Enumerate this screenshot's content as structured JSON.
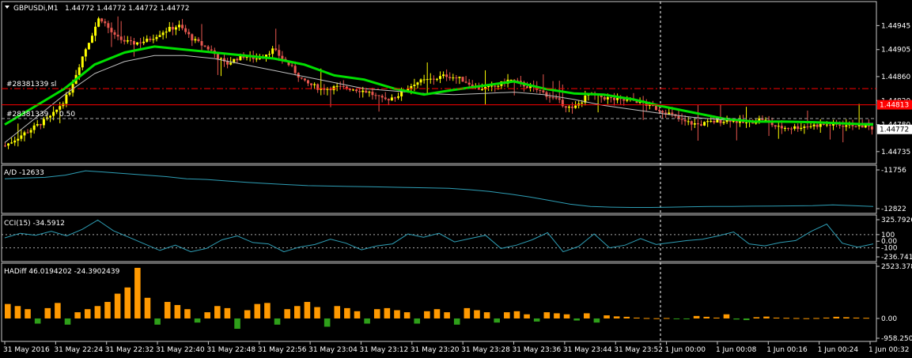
{
  "header": {
    "symbol": "GBPUSDi,M1",
    "ohlc": "1.44772 1.44772 1.44772 1.44772"
  },
  "colors": {
    "bull": "#FFFF00",
    "bear": "#E8574F",
    "ma_fast": "#00E000",
    "ma_slow": "#C0C0C0",
    "indicator_line": "#2E9EB5",
    "hist_up": "#FF9900",
    "hist_down": "#2E9F1A",
    "sl_line": "#FF0000",
    "bid_label": "#FF0000"
  },
  "chart_data": [
    {
      "type": "candlestick",
      "panel": "price",
      "ylim": [
        1.44715,
        1.44985
      ],
      "y_ticks": [
        "1.44945",
        "1.44905",
        "1.44860",
        "1.44820",
        "1.44780",
        "1.44735"
      ],
      "current_price": "1.44772",
      "sl_price": "1.44813",
      "order_lines": [
        {
          "label": "#28381339 sl",
          "price": 1.4484
        },
        {
          "label": "#28381339 ",
          "price": 1.4479
        },
        {
          "label": "0.50",
          "price": 1.4479
        }
      ],
      "x_ticks": [
        "31 May 2016",
        "31 May 22:24",
        "31 May 22:32",
        "31 May 22:40",
        "31 May 22:48",
        "31 May 22:56",
        "31 May 23:04",
        "31 May 23:12",
        "31 May 23:20",
        "31 May 23:28",
        "31 May 23:36",
        "31 May 23:44",
        "31 May 23:52",
        "1 Jun 00:00",
        "1 Jun 00:08",
        "1 Jun 00:16",
        "1 Jun 00:24",
        "1 Jun 00:32"
      ],
      "path": [
        1.44745,
        1.44762,
        1.44778,
        1.44795,
        1.4483,
        1.449,
        1.4496,
        1.44925,
        1.44915,
        1.4492,
        1.44935,
        1.44945,
        1.4492,
        1.44905,
        1.4488,
        1.44895,
        1.4489,
        1.44905,
        1.4488,
        1.4485,
        1.4484,
        1.44842,
        1.4484,
        1.44835,
        1.4482,
        1.4483,
        1.4485,
        1.44855,
        1.44862,
        1.44855,
        1.4484,
        1.44842,
        1.44855,
        1.44845,
        1.44835,
        1.4482,
        1.44805,
        1.4483,
        1.44825,
        1.4482,
        1.4482,
        1.4481,
        1.448,
        1.44785,
        1.4478,
        1.44785,
        1.44788,
        1.44782,
        1.4479,
        1.44775,
        1.44775,
        1.44778,
        1.4478,
        1.44779,
        1.4478,
        1.44775
      ],
      "series": [
        {
          "name": "",
          "values": [
            1.4478,
            1.4481,
            1.4484,
            1.4488,
            1.449,
            1.4491,
            1.44905,
            1.449,
            1.44895,
            1.4489,
            1.4488,
            1.44862,
            1.44855,
            1.4484,
            1.4483,
            1.44838,
            1.44845,
            1.44852,
            1.4484,
            1.44832,
            1.4483,
            1.44822,
            1.4481,
            1.448,
            1.4479,
            1.44785,
            1.44785,
            1.44784,
            1.44782,
            1.4478
          ]
        },
        {
          "name": "",
          "values": [
            1.4475,
            1.4479,
            1.4483,
            1.44865,
            1.44885,
            1.44895,
            1.44895,
            1.4489,
            1.4488,
            1.4487,
            1.4486,
            1.4485,
            1.4484,
            1.44836,
            1.44832,
            1.4483,
            1.44832,
            1.44834,
            1.4483,
            1.44822,
            1.44812,
            1.44805,
            1.44798,
            1.44792,
            1.44788,
            1.44785,
            1.44784,
            1.44783,
            1.44782,
            1.44782
          ]
        }
      ]
    },
    {
      "type": "line",
      "panel": "A/D",
      "label": "A/D -12633",
      "ylim": [
        -12822,
        -11756
      ],
      "y_ticks": [
        "-11756",
        "-12822"
      ],
      "values": [
        -12000,
        -11980,
        -11960,
        -11900,
        -11780,
        -11820,
        -11860,
        -11900,
        -11940,
        -12000,
        -12020,
        -12060,
        -12100,
        -12130,
        -12160,
        -12190,
        -12200,
        -12210,
        -12220,
        -12230,
        -12240,
        -12250,
        -12260,
        -12300,
        -12350,
        -12420,
        -12500,
        -12600,
        -12700,
        -12760,
        -12780,
        -12790,
        -12790,
        -12780,
        -12770,
        -12760,
        -12760,
        -12755,
        -12750,
        -12745,
        -12740,
        -12720,
        -12740,
        -12760
      ]
    },
    {
      "type": "line",
      "panel": "CCI",
      "label": "CCI(15) -34.5912",
      "ylim": [
        -236.7411,
        325.7926
      ],
      "y_ticks": [
        "325.7926",
        "100",
        "0.00",
        "-100",
        "-236.7411"
      ],
      "levels": [
        100,
        -100
      ],
      "values": [
        50,
        120,
        90,
        150,
        80,
        180,
        320,
        160,
        60,
        -40,
        -140,
        -60,
        -160,
        -110,
        20,
        80,
        -20,
        -40,
        -160,
        -90,
        -50,
        30,
        -30,
        -130,
        -70,
        -40,
        110,
        60,
        120,
        -10,
        40,
        90,
        -110,
        -60,
        20,
        130,
        -160,
        -80,
        110,
        -100,
        -60,
        40,
        -50,
        -20,
        10,
        30,
        80,
        140,
        -40,
        -70,
        -20,
        10,
        150,
        260,
        -30,
        -90,
        -40
      ]
    },
    {
      "type": "bar",
      "panel": "HADiff",
      "label": "HADiff 46.0194202 -24.3902439",
      "ylim": [
        -958.2502,
        2523.378
      ],
      "y_ticks": [
        "2523.378",
        "0.00",
        "-958.2502"
      ],
      "values": [
        700,
        600,
        450,
        -250,
        500,
        750,
        -300,
        300,
        450,
        600,
        800,
        1200,
        1500,
        2450,
        1000,
        -300,
        800,
        650,
        450,
        -200,
        300,
        600,
        500,
        -500,
        400,
        700,
        750,
        -300,
        450,
        600,
        800,
        550,
        -400,
        600,
        500,
        350,
        -250,
        450,
        500,
        400,
        300,
        -250,
        350,
        450,
        300,
        -300,
        500,
        400,
        300,
        -200,
        300,
        350,
        200,
        -150,
        300,
        250,
        200,
        -100,
        250,
        -200,
        150,
        100,
        80,
        40,
        20,
        10,
        20,
        -30,
        -40,
        120,
        80,
        40,
        200,
        -50,
        -80,
        60,
        90,
        40,
        30,
        20,
        10,
        20,
        40,
        80,
        60,
        40,
        30
      ]
    }
  ]
}
